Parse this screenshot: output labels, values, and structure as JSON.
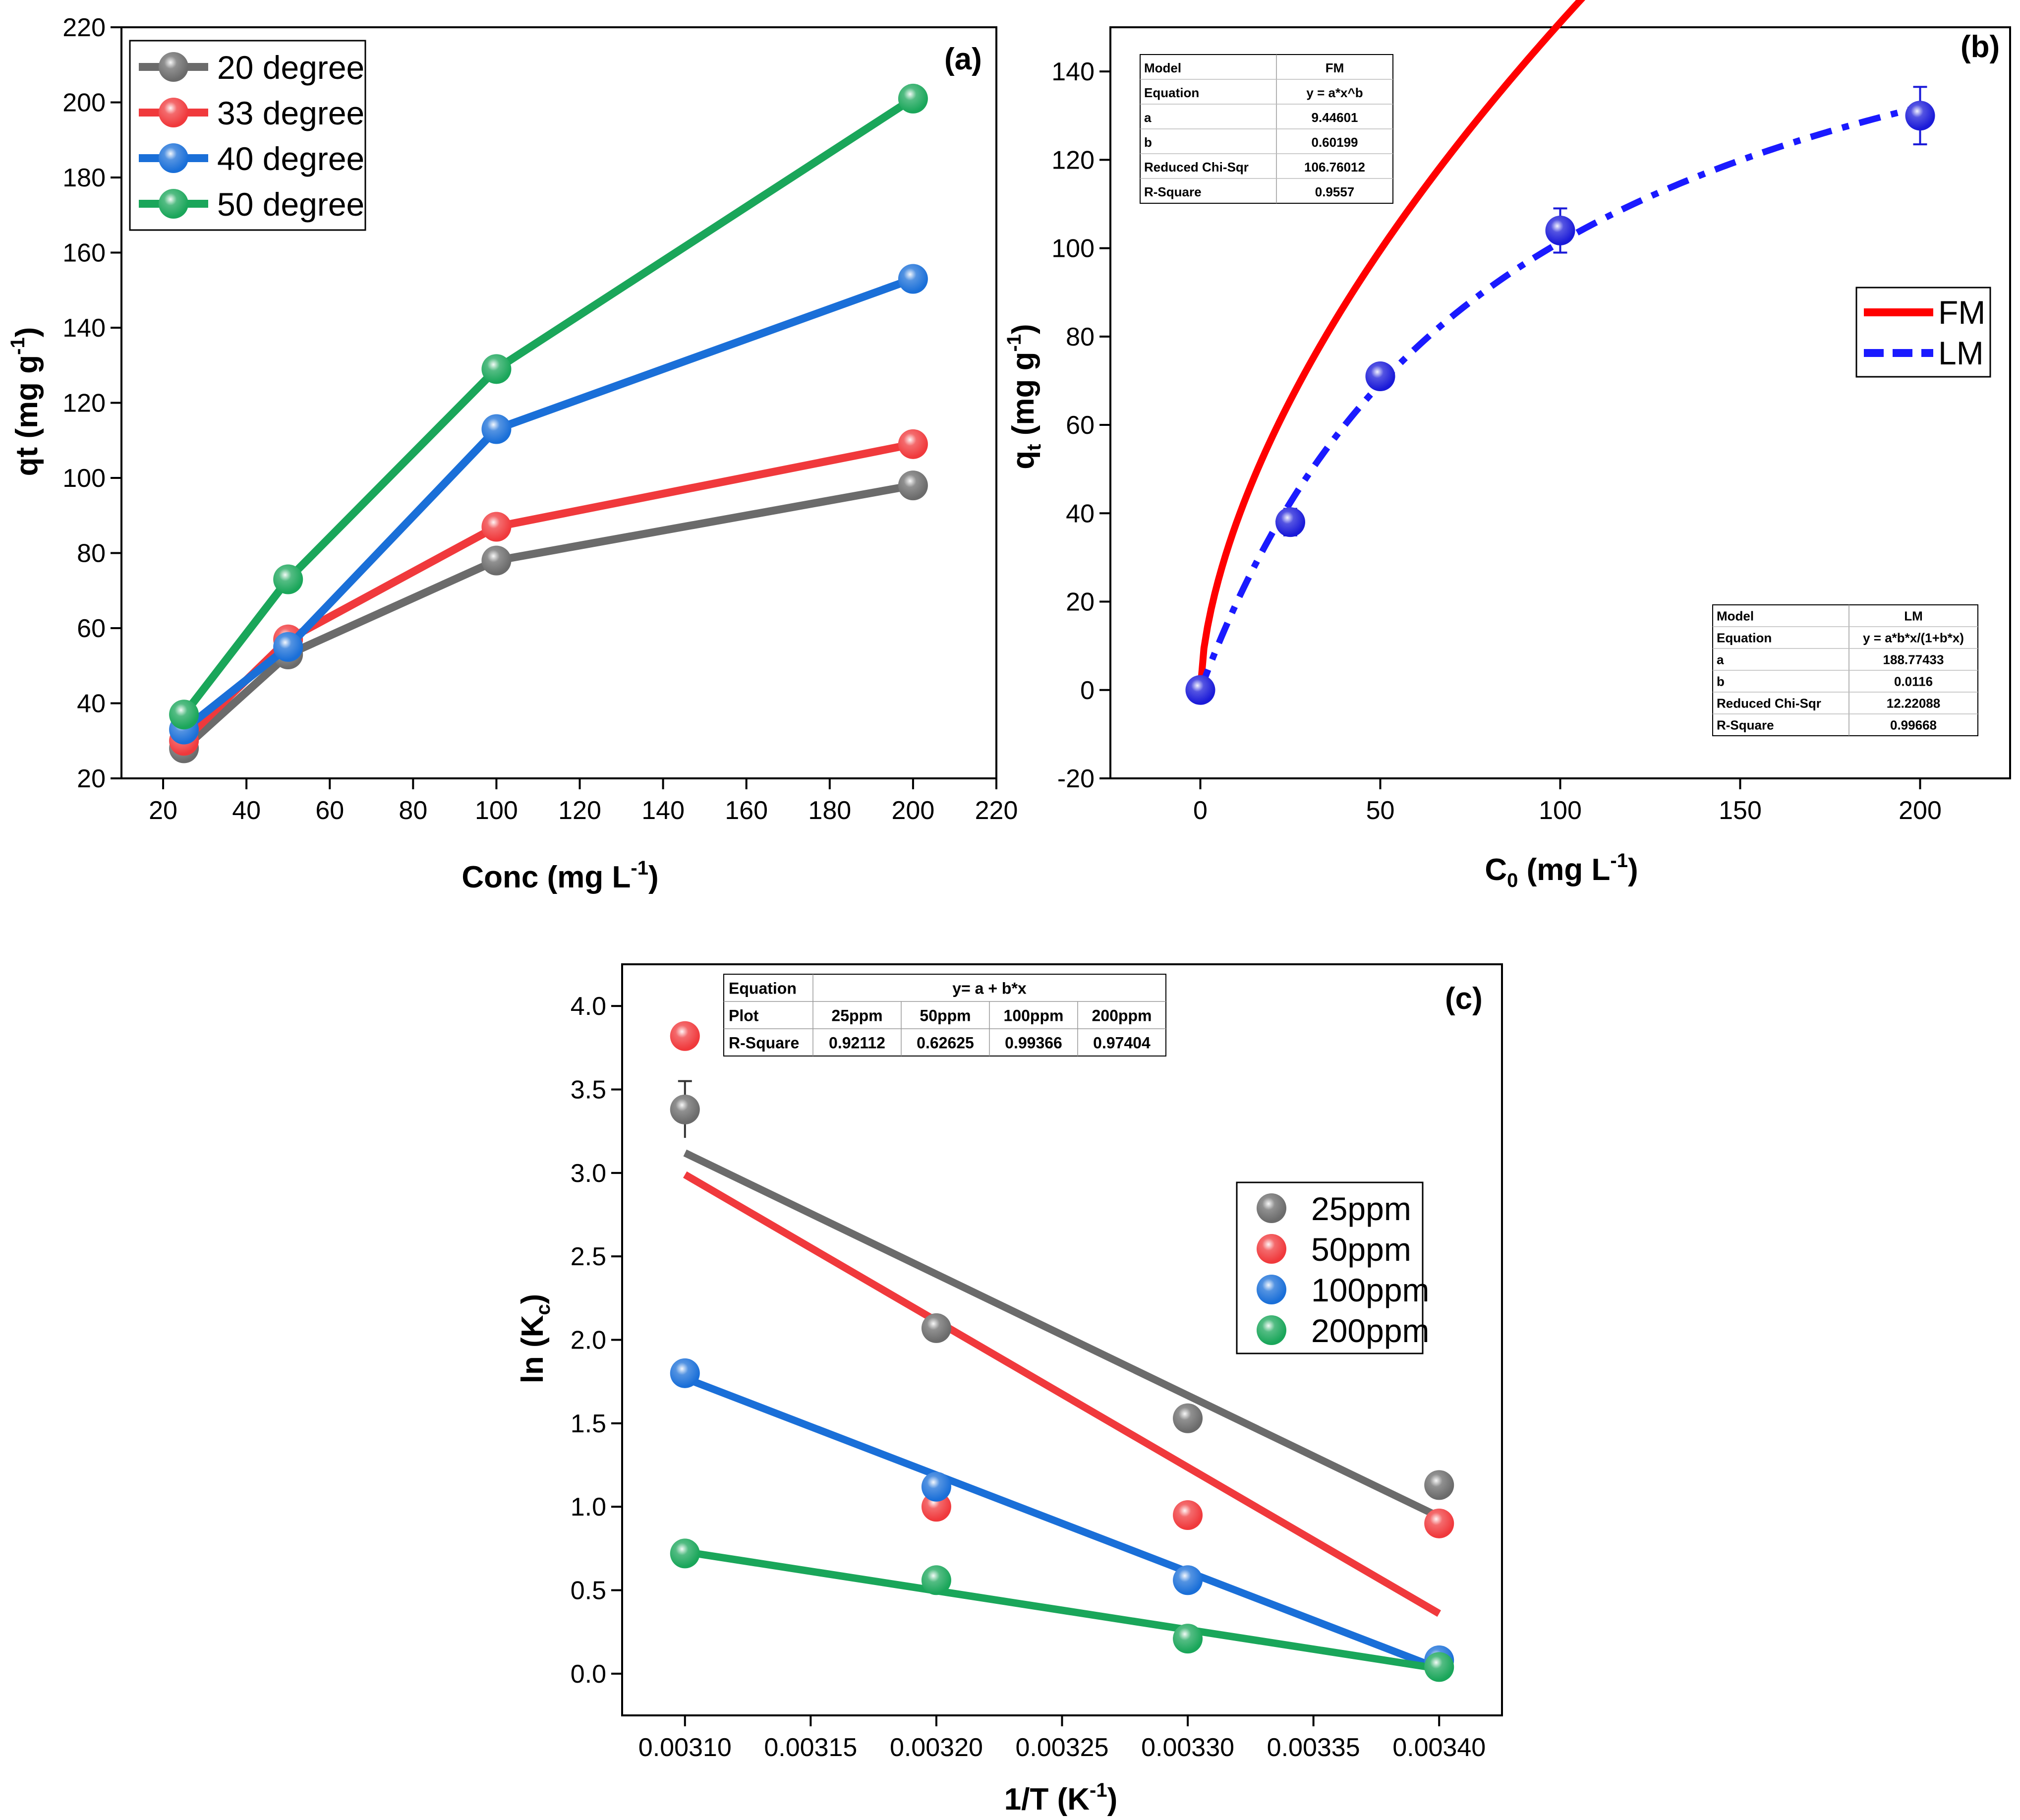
{
  "chart_data": [
    {
      "type": "line",
      "panel_label": "(a)",
      "xlabel_main": "Conc (mg L",
      "xlabel_sup": "-1",
      "xlabel_end": ")",
      "ylabel_main": "qt (mg g",
      "ylabel_sup": "-1",
      "ylabel_end": ")",
      "xlim": [
        10,
        220
      ],
      "ylim": [
        20,
        220
      ],
      "xticks": [
        "20",
        "40",
        "60",
        "80",
        "100",
        "120",
        "140",
        "160",
        "180",
        "200",
        "220"
      ],
      "yticks": [
        "20",
        "40",
        "60",
        "80",
        "100",
        "120",
        "140",
        "160",
        "180",
        "200",
        "220"
      ],
      "x": [
        25,
        50,
        100,
        200
      ],
      "series": [
        {
          "name": "20 degree",
          "color": "#6b6b6b",
          "values": [
            28,
            53,
            78,
            98
          ]
        },
        {
          "name": "33 degree",
          "color": "#f0393c",
          "values": [
            30,
            57,
            87,
            109
          ]
        },
        {
          "name": "40 degree",
          "color": "#1a6fd8",
          "values": [
            33,
            55,
            113,
            153
          ]
        },
        {
          "name": "50 degree",
          "color": "#1aa65a",
          "values": [
            37,
            73,
            129,
            201
          ]
        }
      ],
      "legend": "top-left"
    },
    {
      "type": "scatter",
      "panel_label": "(b)",
      "xlabel_main": "C",
      "xlabel_sub": "0",
      "xlabel_mid": " (mg L",
      "xlabel_sup": "-1",
      "xlabel_end": ")",
      "ylabel_main": "q",
      "ylabel_sub": "t",
      "ylabel_mid": " (mg g",
      "ylabel_sup": "-1",
      "ylabel_end": ")",
      "xlim": [
        -25,
        225
      ],
      "ylim": [
        -20,
        150
      ],
      "xticks": [
        "0",
        "50",
        "100",
        "150",
        "200"
      ],
      "yticks": [
        "-20",
        "0",
        "20",
        "40",
        "60",
        "80",
        "100",
        "120",
        "140"
      ],
      "x": [
        0,
        25,
        50,
        100,
        200
      ],
      "values": [
        0,
        38,
        71,
        104,
        130
      ],
      "errors": [
        0,
        3,
        2,
        5,
        6.5
      ],
      "point_color": "#1a1ad8",
      "fits": [
        {
          "name": "FM",
          "color": "#ff0000",
          "dash": "solid",
          "a": 9.44601,
          "b": 0.60199
        },
        {
          "name": "LM",
          "color": "#1a1aff",
          "dash": "dashed",
          "a": 188.77433,
          "b": 0.0116
        }
      ],
      "legend": "right",
      "table_fm": [
        [
          "Model",
          "FM"
        ],
        [
          "Equation",
          "y = a*x^b"
        ],
        [
          "a",
          "9.44601"
        ],
        [
          "b",
          "0.60199"
        ],
        [
          "Reduced Chi-Sqr",
          "106.76012"
        ],
        [
          "R-Square",
          "0.9557"
        ]
      ],
      "table_lm": [
        [
          "Model",
          "LM"
        ],
        [
          "Equation",
          "y = a*b*x/(1+b*x)"
        ],
        [
          "a",
          "188.77433"
        ],
        [
          "b",
          "0.0116"
        ],
        [
          "Reduced Chi-Sqr",
          "12.22088"
        ],
        [
          "R-Square",
          "0.99668"
        ]
      ]
    },
    {
      "type": "scatter",
      "panel_label": "(c)",
      "xlabel_main": "1/T (K",
      "xlabel_sup": "-1",
      "xlabel_end": ")",
      "ylabel_main": "ln (K",
      "ylabel_sub": "c",
      "ylabel_end": ")",
      "xlim": [
        0.003075,
        0.003425
      ],
      "ylim": [
        -0.25,
        4.25
      ],
      "xticks": [
        "0.00310",
        "0.00315",
        "0.00320",
        "0.00325",
        "0.00330",
        "0.00335",
        "0.00340"
      ],
      "yticks": [
        "0.0",
        "0.5",
        "1.0",
        "1.5",
        "2.0",
        "2.5",
        "3.0",
        "3.5",
        "4.0"
      ],
      "x": [
        0.0031,
        0.0032,
        0.0033,
        0.0034
      ],
      "series": [
        {
          "name": "25ppm",
          "color": "#6b6b6b",
          "values": [
            3.38,
            2.07,
            1.53,
            1.13
          ],
          "fit": [
            3.12,
            0.94
          ]
        },
        {
          "name": "50ppm",
          "color": "#f0393c",
          "values": [
            3.82,
            1.0,
            0.95,
            0.9
          ],
          "fit": [
            2.99,
            0.36
          ]
        },
        {
          "name": "100ppm",
          "color": "#1a6fd8",
          "values": [
            1.8,
            1.12,
            0.56,
            0.08
          ],
          "fit": [
            1.77,
            0.03
          ]
        },
        {
          "name": "200ppm",
          "color": "#1aa65a",
          "values": [
            0.72,
            0.56,
            0.21,
            0.04
          ],
          "fit": [
            0.73,
            0.03
          ]
        }
      ],
      "legend": "right",
      "table": {
        "eq_label": "Equation",
        "eq_value": "y= a + b*x",
        "plot_label": "Plot",
        "plots": [
          "25ppm",
          "50ppm",
          "100ppm",
          "200ppm"
        ],
        "r_label": "R-Square",
        "r_values": [
          "0.92112",
          "0.62625",
          "0.99366",
          "0.97404"
        ]
      }
    }
  ]
}
